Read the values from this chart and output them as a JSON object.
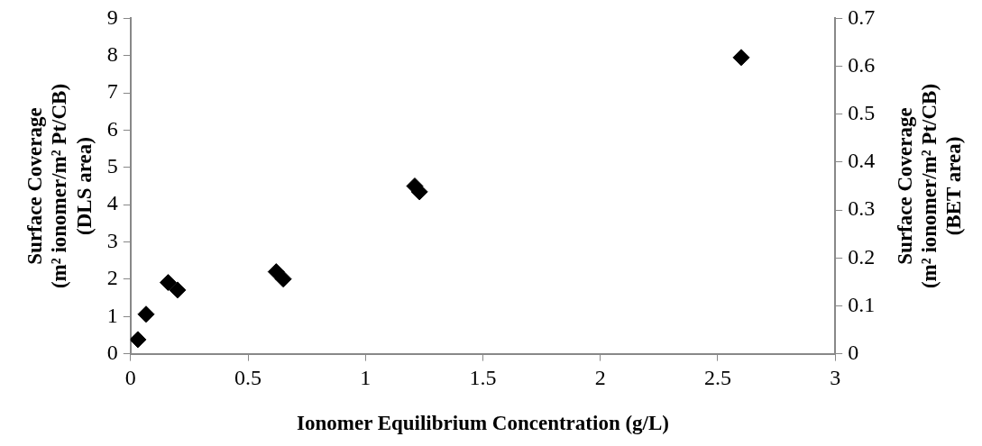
{
  "chart_data": {
    "type": "scatter",
    "xlabel": "Ionomer Equilibrium Concentration (g/L)",
    "ylabel": "Surface Coverage (m² ionomer/m² Pt/CB) (DLS area)",
    "y2label": "Surface Coverage (m² ionomer/m² Pt/CB) (BET area)",
    "series": [
      {
        "color": "#000000",
        "x": [
          0.031,
          0.066,
          0.16,
          0.62,
          1.21,
          2.6
        ],
        "values": [
          0.38,
          1.06,
          1.91,
          2.2,
          4.5,
          7.95
        ]
      },
      {
        "color": "#000000",
        "axis": "y2",
        "x": [
          0.2,
          0.65,
          1.23
        ],
        "values": [
          0.133,
          0.156,
          0.338
        ]
      }
    ],
    "xlim": [
      0,
      3
    ],
    "xticks": [
      0,
      0.5,
      1,
      1.5,
      2,
      2.5,
      3
    ],
    "ylim": [
      0,
      9
    ],
    "yticks": [
      0,
      1,
      2,
      3,
      4,
      5,
      6,
      7,
      8,
      9
    ],
    "y2lim": [
      0,
      0.7
    ],
    "y2ticks": [
      0,
      0.1,
      0.2,
      0.3,
      0.4,
      0.5,
      0.6,
      0.7
    ],
    "marker": "diamond",
    "legend": false
  }
}
